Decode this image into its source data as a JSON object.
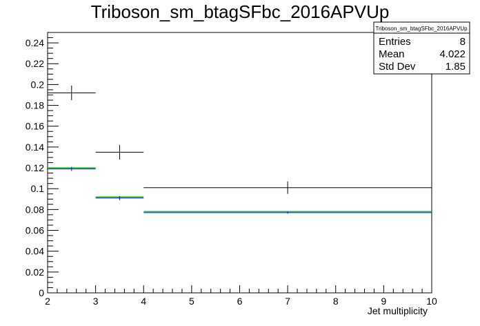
{
  "chart_data": {
    "type": "histogram",
    "title": "Triboson_sm_btagSFbc_2016APVUp",
    "xlabel": "Jet multiplicity",
    "ylabel": "",
    "xlim": [
      2,
      10
    ],
    "ylim": [
      0,
      0.25
    ],
    "x_ticks": [
      "2",
      "3",
      "4",
      "5",
      "6",
      "7",
      "8",
      "9",
      "10"
    ],
    "y_ticks": [
      "0",
      "0.02",
      "0.04",
      "0.06",
      "0.08",
      "0.1",
      "0.12",
      "0.14",
      "0.16",
      "0.18",
      "0.2",
      "0.22",
      "0.24"
    ],
    "y_tick_values": [
      0,
      0.02,
      0.04,
      0.06,
      0.08,
      0.1,
      0.12,
      0.14,
      0.16,
      0.18,
      0.2,
      0.22,
      0.24
    ],
    "bins": [
      [
        2,
        3
      ],
      [
        3,
        4
      ],
      [
        4,
        10
      ]
    ],
    "series": [
      {
        "color": "#00cc00",
        "values": [
          0.12,
          0.092,
          0.078
        ],
        "style": "step"
      },
      {
        "color": "#0000ff",
        "values": [
          0.119,
          0.091,
          0.077
        ],
        "errors": [
          0.002,
          0.002,
          0.001
        ],
        "style": "errorbar"
      },
      {
        "color": "#000000",
        "values": [
          0.192,
          0.135,
          0.101
        ],
        "errors": [
          0.007,
          0.007,
          0.006
        ],
        "style": "errorbar"
      }
    ],
    "grid": false,
    "legend": "none"
  },
  "stats_box": {
    "name": "Triboson_sm_btagSFbc_2016APVUp",
    "rows": [
      {
        "label": "Entries",
        "value": "8"
      },
      {
        "label": "Mean",
        "value": "4.022"
      },
      {
        "label": "Std Dev",
        "value": "1.85"
      }
    ]
  }
}
